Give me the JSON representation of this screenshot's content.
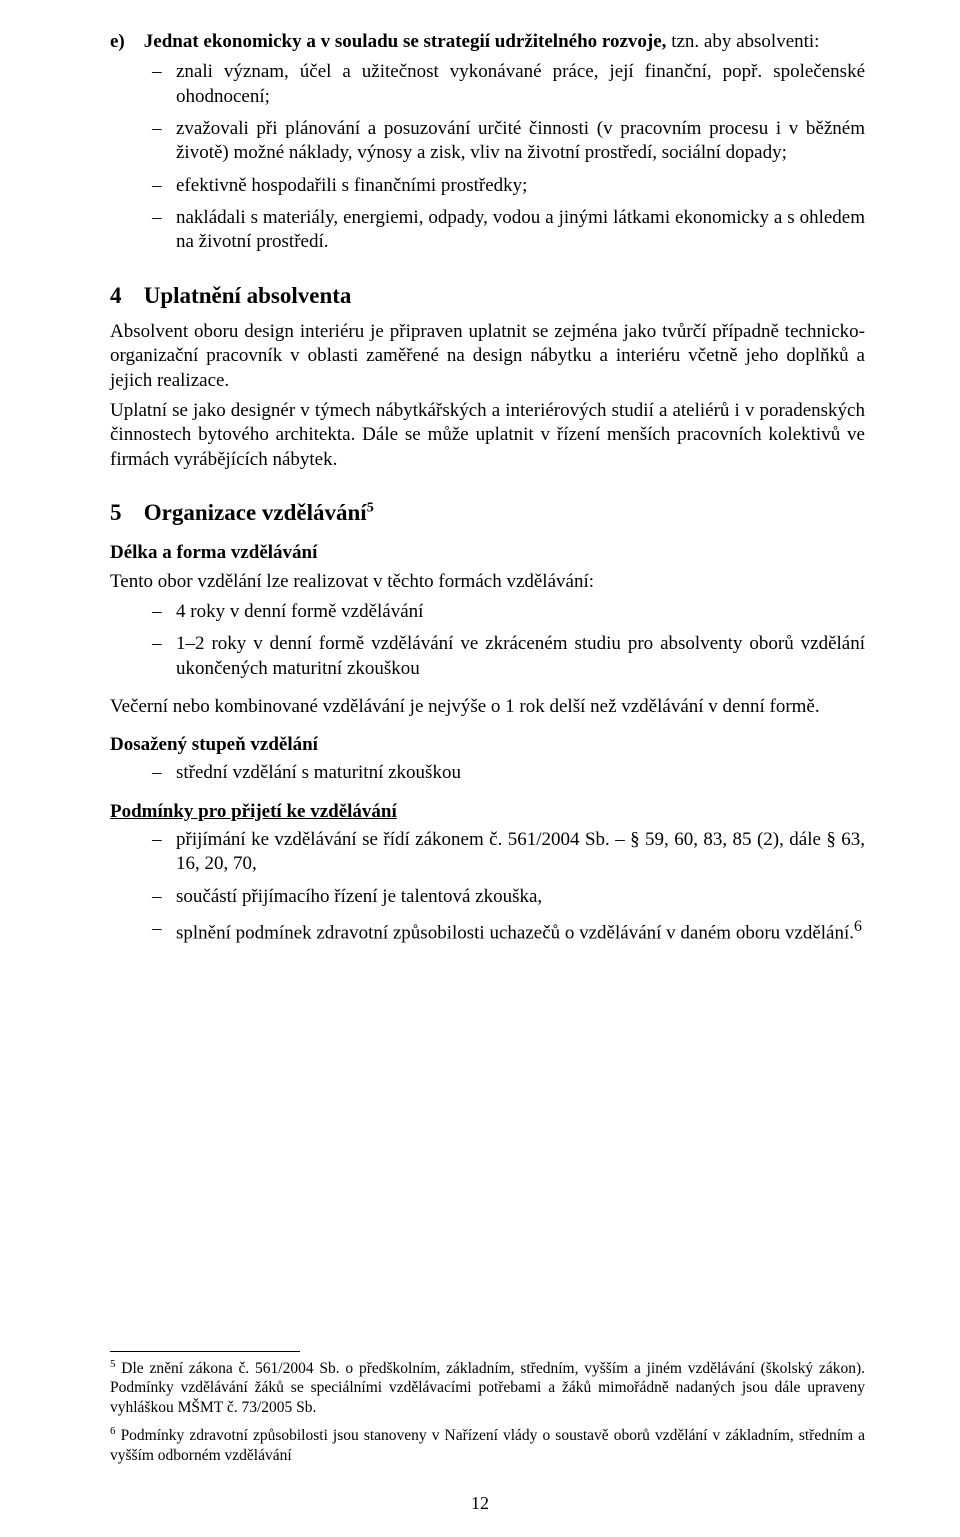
{
  "sectionE": {
    "letter": "e)",
    "title": "Jednat ekonomicky a v souladu se strategií udržitelného rozvoje,",
    "tail": " tzn. aby absolventi:",
    "items": [
      "znali význam, účel a užitečnost vykonávané práce, její finanční, popř. společenské ohodnocení;",
      "zvažovali při plánování a posuzování určité činnosti (v pracovním procesu i v běžném životě) možné náklady, výnosy a zisk, vliv na životní prostředí, sociální dopady;",
      "efektivně hospodařili s finančními prostředky;",
      "nakládali s materiály, energiemi, odpady, vodou a jinými látkami ekonomicky a s ohledem na životní prostředí."
    ]
  },
  "sec4": {
    "num": "4",
    "title": "Uplatnění absolventa",
    "para1": "Absolvent oboru design interiéru je připraven uplatnit se zejména jako tvůrčí případně technicko-organizační pracovník v oblasti zaměřené na design nábytku a interiéru včetně jeho doplňků a jejich realizace.",
    "para2": "Uplatní se jako designér v týmech nábytkářských a interiérových studií a ateliérů i v poradenských činnostech bytového architekta. Dále se může uplatnit v řízení menších pracovních kolektivů ve firmách vyrábějících nábytek."
  },
  "sec5": {
    "num": "5",
    "title": "Organizace vzdělávání",
    "supRef": "5",
    "lenForm": {
      "heading": "Délka a forma vzdělávání",
      "intro": "Tento obor vzdělání lze realizovat v těchto formách vzdělávání:",
      "items": [
        "4 roky v denní formě vzdělávání",
        "1–2 roky v denní formě vzdělávání ve zkráceném studiu pro absolventy oborů vzdělání ukončených maturitní zkouškou"
      ],
      "after": "Večerní nebo kombinované vzdělávání je nejvýše o 1 rok delší než vzdělávání v denní formě."
    },
    "degree": {
      "heading": "Dosažený stupeň vzdělání",
      "items": [
        "střední vzdělání s maturitní zkouškou"
      ]
    },
    "admission": {
      "heading": "Podmínky pro přijetí ke vzdělávání",
      "items": [
        "přijímání ke vzdělávání se řídí zákonem č. 561/2004 Sb. – § 59, 60, 83, 85 (2), dále § 63, 16, 20, 70,",
        "součástí přijímacího řízení je talentová zkouška,",
        "splnění podmínek zdravotní způsobilosti uchazečů o vzdělávání v daném oboru vzdělání."
      ],
      "lastSup": "6"
    }
  },
  "footnotes": {
    "f5": "Dle znění zákona č. 561/2004 Sb. o předškolním, základním, středním, vyšším a jiném vzdělávání (školský zákon). Podmínky vzdělávání žáků se speciálními vzdělávacími potřebami a žáků mimořádně nadaných jsou dále upraveny vyhláškou MŠMT č. 73/2005 Sb.",
    "f6": "Podmínky zdravotní způsobilosti jsou stanoveny v Nařízení vlády o soustavě oborů vzdělání v základním, středním a vyšším odborném vzdělávání"
  },
  "pageNumber": "12"
}
